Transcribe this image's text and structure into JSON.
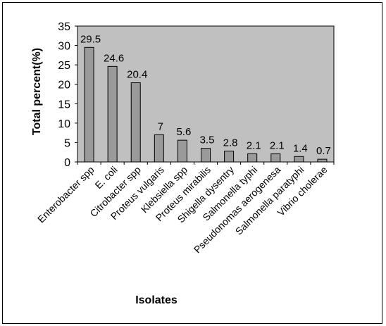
{
  "chart_data": {
    "type": "bar",
    "title": "",
    "xlabel": "Isolates",
    "ylabel": "Total percent(%)",
    "ylim": [
      0,
      35
    ],
    "yticks": [
      0,
      5,
      10,
      15,
      20,
      25,
      30,
      35
    ],
    "grid": false,
    "legend": "none",
    "categories": [
      "Enterobacter  spp",
      "E. coli",
      "Citrobacter spp",
      "Proteus vulgaris",
      "Klebsiella spp",
      "Proteus mirabilis",
      "Shigella dysentry",
      "Salmonella typhi",
      "Pseudonomas aerogenesa",
      "Salmonella paratyphi",
      "Vibrio cholerae"
    ],
    "values": [
      29.5,
      24.6,
      20.4,
      7,
      5.6,
      3.5,
      2.8,
      2.1,
      2.1,
      1.4,
      0.7
    ],
    "data_labels": [
      "29.5",
      "24.6",
      "20.4",
      "7",
      "5.6",
      "3.5",
      "2.8",
      "2.1",
      "2.1",
      "1.4",
      "0.7"
    ],
    "colors": {
      "plot_background": "#c0c0c0",
      "bar_fill": "#9a9a9a",
      "bar_stroke": "#000000"
    }
  }
}
